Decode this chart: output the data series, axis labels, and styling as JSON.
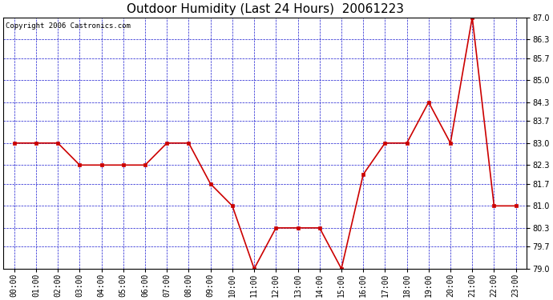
{
  "title": "Outdoor Humidity (Last 24 Hours)  20061223",
  "copyright_text": "Copyright 2006 Castronics.com",
  "x_labels": [
    "00:00",
    "01:00",
    "02:00",
    "03:00",
    "04:00",
    "05:00",
    "06:00",
    "07:00",
    "08:00",
    "09:00",
    "10:00",
    "11:00",
    "12:00",
    "13:00",
    "14:00",
    "15:00",
    "16:00",
    "17:00",
    "18:00",
    "19:00",
    "20:00",
    "21:00",
    "22:00",
    "23:00"
  ],
  "y_values": [
    83.0,
    83.0,
    83.0,
    82.3,
    82.3,
    82.3,
    82.3,
    83.0,
    83.0,
    81.7,
    81.0,
    79.0,
    80.3,
    80.3,
    80.3,
    79.0,
    82.0,
    83.0,
    83.0,
    84.3,
    83.0,
    87.0,
    81.0,
    81.0
  ],
  "ylim": [
    79.0,
    87.0
  ],
  "yticks": [
    79.0,
    79.7,
    80.3,
    81.0,
    81.7,
    82.3,
    83.0,
    83.7,
    84.3,
    85.0,
    85.7,
    86.3,
    87.0
  ],
  "line_color": "#cc0000",
  "marker_color": "#cc0000",
  "grid_color": "#0000cc",
  "bg_color": "#ffffff",
  "plot_bg_color": "#ffffff",
  "title_fontsize": 11,
  "tick_fontsize": 7,
  "copyright_fontsize": 6.5
}
